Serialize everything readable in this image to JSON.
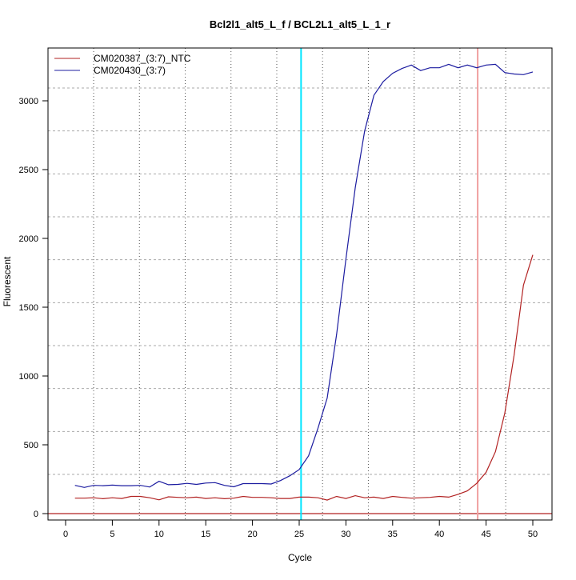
{
  "chart_data": {
    "type": "line",
    "title": "Bcl2l1_alt5_L_f / BCL2L1_alt5_L_1_r",
    "xlabel": "Cycle",
    "ylabel": "Fluorescent",
    "xlim": [
      -2,
      52
    ],
    "ylim": [
      -30,
      3390
    ],
    "x_ticks": [
      0,
      5,
      10,
      15,
      20,
      25,
      30,
      35,
      40,
      45,
      50
    ],
    "y_ticks": [
      0,
      500,
      1000,
      1500,
      2000,
      2500,
      3000
    ],
    "grid": true,
    "legend_position": "top-left",
    "x": [
      1,
      2,
      3,
      4,
      5,
      6,
      7,
      8,
      9,
      10,
      11,
      12,
      13,
      14,
      15,
      16,
      17,
      18,
      19,
      20,
      21,
      22,
      23,
      24,
      25,
      26,
      27,
      28,
      29,
      30,
      31,
      32,
      33,
      34,
      35,
      36,
      37,
      38,
      39,
      40,
      41,
      42,
      43,
      44,
      45,
      46,
      47,
      48,
      49,
      50
    ],
    "series": [
      {
        "name": "CM020387_(3:7)_NTC",
        "color": "#b22222",
        "values": [
          112,
          112,
          115,
          108,
          115,
          110,
          125,
          125,
          115,
          100,
          122,
          118,
          115,
          120,
          110,
          115,
          108,
          112,
          125,
          118,
          118,
          115,
          110,
          110,
          120,
          120,
          115,
          98,
          125,
          110,
          130,
          115,
          120,
          110,
          125,
          118,
          112,
          115,
          118,
          125,
          120,
          140,
          165,
          220,
          300,
          450,
          730,
          1150,
          1660,
          1880
        ]
      },
      {
        "name": "CM020430_(3:7)",
        "color": "#1c1ca0",
        "values": [
          205,
          190,
          205,
          203,
          207,
          203,
          203,
          205,
          193,
          235,
          210,
          212,
          220,
          212,
          222,
          225,
          205,
          195,
          218,
          218,
          218,
          215,
          240,
          275,
          320,
          420,
          620,
          840,
          1300,
          1850,
          2370,
          2780,
          3040,
          3140,
          3200,
          3235,
          3260,
          3220,
          3240,
          3240,
          3265,
          3240,
          3260,
          3240,
          3260,
          3265,
          3205,
          3195,
          3190,
          3210
        ]
      }
    ],
    "vertical_markers": [
      {
        "x": 25.2,
        "color": "#00e5ff"
      },
      {
        "x": 44.1,
        "color": "#f0a0a0"
      }
    ],
    "threshold_line": {
      "y": 0,
      "color": "#b22222"
    }
  }
}
